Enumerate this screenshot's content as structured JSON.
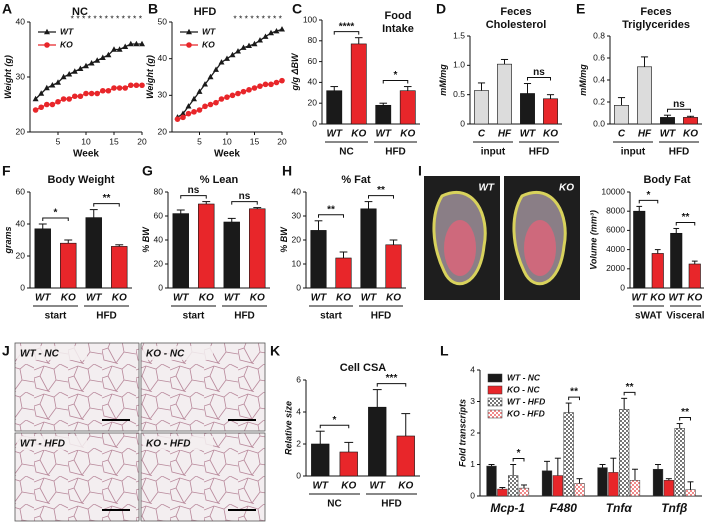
{
  "chart_data": [
    {
      "label": "A",
      "type": "line",
      "title": "NC",
      "xlabel": "Week",
      "ylabel": "Weight (g)",
      "x": [
        1,
        2,
        3,
        4,
        5,
        6,
        7,
        8,
        9,
        10,
        11,
        12,
        13,
        14,
        15,
        16,
        17,
        18,
        19,
        20
      ],
      "xlim": [
        0,
        20
      ],
      "xticks": [
        5,
        10,
        15,
        20
      ],
      "ylim": [
        20,
        40
      ],
      "yticks": [
        20,
        30,
        40
      ],
      "stars": "* * * * * * * * * * * * *",
      "series": [
        {
          "name": "WT",
          "color": "#1a1a1a",
          "marker": "triangle",
          "values": [
            26,
            27,
            28,
            28.5,
            29,
            30,
            30.5,
            31,
            31.5,
            32,
            32.5,
            33,
            33.5,
            34,
            35,
            35,
            35.5,
            36,
            36,
            36
          ]
        },
        {
          "name": "KO",
          "color": "#e8262a",
          "marker": "circle",
          "values": [
            24,
            24.5,
            25,
            25,
            25.5,
            26,
            26,
            26.5,
            26.5,
            27,
            27,
            27,
            27.5,
            27.5,
            28,
            28,
            28,
            28.5,
            28.5,
            28.5
          ]
        }
      ]
    },
    {
      "label": "B",
      "type": "line",
      "title": "HFD",
      "xlabel": "Week",
      "ylabel": "Weight (g)",
      "x": [
        1,
        2,
        3,
        4,
        5,
        6,
        7,
        8,
        9,
        10,
        11,
        12,
        13,
        14,
        15,
        16,
        17,
        18,
        19,
        20
      ],
      "xlim": [
        0,
        20
      ],
      "xticks": [
        5,
        10,
        15,
        20
      ],
      "ylim": [
        20,
        50
      ],
      "yticks": [
        20,
        30,
        40,
        50
      ],
      "stars": "* * * * * * * * *",
      "series": [
        {
          "name": "WT",
          "color": "#1a1a1a",
          "marker": "triangle",
          "values": [
            24,
            25,
            27,
            29,
            31,
            33,
            35,
            37,
            39,
            40,
            41,
            42,
            43,
            43.5,
            44,
            45,
            46,
            47,
            47.5,
            48
          ]
        },
        {
          "name": "KO",
          "color": "#e8262a",
          "marker": "circle",
          "values": [
            23.5,
            24,
            25,
            25.5,
            26,
            27,
            27.5,
            28,
            29,
            29.5,
            30,
            30.5,
            31,
            31.5,
            32,
            32.5,
            33,
            33,
            33.5,
            34
          ]
        }
      ]
    },
    {
      "label": "C",
      "type": "bar",
      "title": [
        "Food",
        "Intake"
      ],
      "ylabel": "g/g ΔBW",
      "categories": [
        "WT",
        "KO",
        "WT",
        "KO"
      ],
      "groups": [
        "NC",
        "HFD"
      ],
      "values": [
        32,
        77,
        18,
        32
      ],
      "errors": [
        4,
        6,
        2,
        4
      ],
      "colors": [
        "#1a1a1a",
        "#e8262a",
        "#1a1a1a",
        "#e8262a"
      ],
      "ylim": [
        0,
        100
      ],
      "yticks": [
        0,
        20,
        40,
        60,
        80,
        100
      ],
      "significance": [
        {
          "bars": [
            0,
            1
          ],
          "label": "****"
        },
        {
          "bars": [
            2,
            3
          ],
          "label": "*"
        }
      ]
    },
    {
      "label": "D",
      "type": "bar",
      "title": [
        "Feces",
        "Cholesterol"
      ],
      "ylabel": "mM/mg",
      "categories": [
        "C",
        "HF",
        "WT",
        "KO"
      ],
      "groups": [
        "input",
        "HFD"
      ],
      "values": [
        0.57,
        1.02,
        0.52,
        0.43
      ],
      "errors": [
        0.13,
        0.08,
        0.17,
        0.07
      ],
      "colors": [
        "#dcdcdc",
        "#dcdcdc",
        "#1a1a1a",
        "#e8262a"
      ],
      "ylim": [
        0,
        1.5
      ],
      "yticks": [
        0,
        0.5,
        {
          "value": 1,
          "label": "1.0"
        },
        1.5
      ],
      "significance": [
        {
          "bars": [
            2,
            3
          ],
          "label": "ns"
        }
      ]
    },
    {
      "label": "E",
      "type": "bar",
      "title": [
        "Feces",
        "Triglycerides"
      ],
      "ylabel": "mM/mg",
      "categories": [
        "C",
        "HF",
        "WT",
        "KO"
      ],
      "groups": [
        "input",
        "HFD"
      ],
      "values": [
        0.17,
        0.52,
        0.06,
        0.06
      ],
      "errors": [
        0.07,
        0.09,
        0.02,
        0.01
      ],
      "colors": [
        "#dcdcdc",
        "#dcdcdc",
        "#1a1a1a",
        "#e8262a"
      ],
      "ylim": [
        0,
        0.8
      ],
      "yticks": [
        {
          "value": 0,
          "label": "0.0"
        },
        0.2,
        0.4,
        0.6,
        0.8
      ],
      "significance": [
        {
          "bars": [
            2,
            3
          ],
          "label": "ns"
        }
      ]
    },
    {
      "label": "F",
      "type": "bar",
      "title": "Body Weight",
      "ylabel": "grams",
      "categories": [
        "WT",
        "KO",
        "WT",
        "KO"
      ],
      "groups": [
        "start",
        "HFD"
      ],
      "values": [
        37,
        28,
        44,
        26
      ],
      "errors": [
        3,
        2,
        5,
        1
      ],
      "colors": [
        "#1a1a1a",
        "#e8262a",
        "#1a1a1a",
        "#e8262a"
      ],
      "ylim": [
        0,
        60
      ],
      "yticks": [
        0,
        20,
        40,
        60
      ],
      "significance": [
        {
          "bars": [
            0,
            1
          ],
          "label": "*"
        },
        {
          "bars": [
            2,
            3
          ],
          "label": "**"
        }
      ]
    },
    {
      "label": "G",
      "type": "bar",
      "title": "% Lean",
      "ylabel": "% BW",
      "categories": [
        "WT",
        "KO",
        "WT",
        "KO"
      ],
      "groups": [
        "start",
        "HFD"
      ],
      "values": [
        62,
        70,
        55,
        66
      ],
      "errors": [
        3,
        2,
        3,
        1
      ],
      "colors": [
        "#1a1a1a",
        "#e8262a",
        "#1a1a1a",
        "#e8262a"
      ],
      "ylim": [
        0,
        80
      ],
      "yticks": [
        0,
        20,
        40,
        60,
        80
      ],
      "significance": [
        {
          "bars": [
            0,
            1
          ],
          "label": "ns"
        },
        {
          "bars": [
            2,
            3
          ],
          "label": "ns"
        }
      ]
    },
    {
      "label": "H",
      "type": "bar",
      "title": "% Fat",
      "ylabel": "% BW",
      "categories": [
        "WT",
        "KO",
        "WT",
        "KO"
      ],
      "groups": [
        "start",
        "HFD"
      ],
      "values": [
        24,
        12.5,
        33,
        18
      ],
      "errors": [
        4,
        2.5,
        3,
        2
      ],
      "colors": [
        "#1a1a1a",
        "#e8262a",
        "#1a1a1a",
        "#e8262a"
      ],
      "ylim": [
        0,
        40
      ],
      "yticks": [
        0,
        10,
        20,
        30,
        40
      ],
      "significance": [
        {
          "bars": [
            0,
            1
          ],
          "label": "**"
        },
        {
          "bars": [
            2,
            3
          ],
          "label": "**"
        }
      ]
    },
    {
      "label": "I",
      "type": "bar",
      "title": "Body Fat",
      "ylabel": "Volume (mm³)",
      "images": [
        "WT",
        "KO"
      ],
      "categories": [
        "WT",
        "KO",
        "WT",
        "KO"
      ],
      "groups": [
        "sWAT",
        "Visceral"
      ],
      "values": [
        8000,
        3600,
        5700,
        2500
      ],
      "errors": [
        500,
        400,
        500,
        300
      ],
      "colors": [
        "#1a1a1a",
        "#e8262a",
        "#1a1a1a",
        "#e8262a"
      ],
      "ylim": [
        0,
        10000
      ],
      "yticks": [
        0,
        2000,
        4000,
        6000,
        8000,
        10000
      ],
      "significance": [
        {
          "bars": [
            0,
            1
          ],
          "label": "*"
        },
        {
          "bars": [
            2,
            3
          ],
          "label": "**"
        }
      ]
    },
    {
      "label": "J",
      "type": "micrographs",
      "panels": [
        "WT - NC",
        "KO - NC",
        "WT - HFD",
        "KO - HFD"
      ]
    },
    {
      "label": "K",
      "type": "bar",
      "title": "Cell CSA",
      "ylabel": "Relative size",
      "categories": [
        "WT",
        "KO",
        "WT",
        "KO"
      ],
      "groups": [
        "NC",
        "HFD"
      ],
      "values": [
        2.0,
        1.5,
        4.3,
        2.5
      ],
      "errors": [
        0.8,
        0.6,
        1.1,
        1.4
      ],
      "colors": [
        "#1a1a1a",
        "#e8262a",
        "#1a1a1a",
        "#e8262a"
      ],
      "ylim": [
        0,
        6
      ],
      "yticks": [
        0,
        2,
        4,
        6
      ],
      "significance": [
        {
          "bars": [
            0,
            1
          ],
          "label": "*"
        },
        {
          "bars": [
            2,
            3
          ],
          "label": "***"
        }
      ]
    },
    {
      "label": "L",
      "type": "grouped_bar",
      "ylabel": "Fold transcripts",
      "categories": [
        "Mcp-1",
        "F480",
        "Tnfα",
        "Tnfβ"
      ],
      "ylim": [
        0,
        4
      ],
      "yticks": [
        0,
        1,
        2,
        3,
        4
      ],
      "series": [
        {
          "name": "WT - NC",
          "color": "#1a1a1a",
          "hatch": false,
          "values": [
            0.95,
            0.8,
            0.9,
            0.85
          ],
          "errors": [
            0.05,
            0.3,
            0.1,
            0.15
          ]
        },
        {
          "name": "KO - NC",
          "color": "#e8262a",
          "hatch": false,
          "values": [
            0.22,
            0.65,
            0.75,
            0.5
          ],
          "errors": [
            0.05,
            0.55,
            0.45,
            0.05
          ]
        },
        {
          "name": "WT - HFD",
          "color": "#777777",
          "hatch": true,
          "values": [
            0.65,
            2.65,
            2.75,
            2.15
          ],
          "errors": [
            0.35,
            0.3,
            0.35,
            0.15
          ]
        },
        {
          "name": "KO - HFD",
          "color": "#f08a8a",
          "hatch": true,
          "values": [
            0.25,
            0.4,
            0.5,
            0.2
          ],
          "errors": [
            0.1,
            0.15,
            0.35,
            0.25
          ]
        }
      ],
      "significance": [
        {
          "category": 0,
          "series": [
            2,
            3
          ],
          "label": "*"
        },
        {
          "category": 1,
          "series": [
            2,
            3
          ],
          "label": "**"
        },
        {
          "category": 2,
          "series": [
            2,
            3
          ],
          "label": "**"
        },
        {
          "category": 3,
          "series": [
            2,
            3
          ],
          "label": "**"
        }
      ]
    }
  ]
}
